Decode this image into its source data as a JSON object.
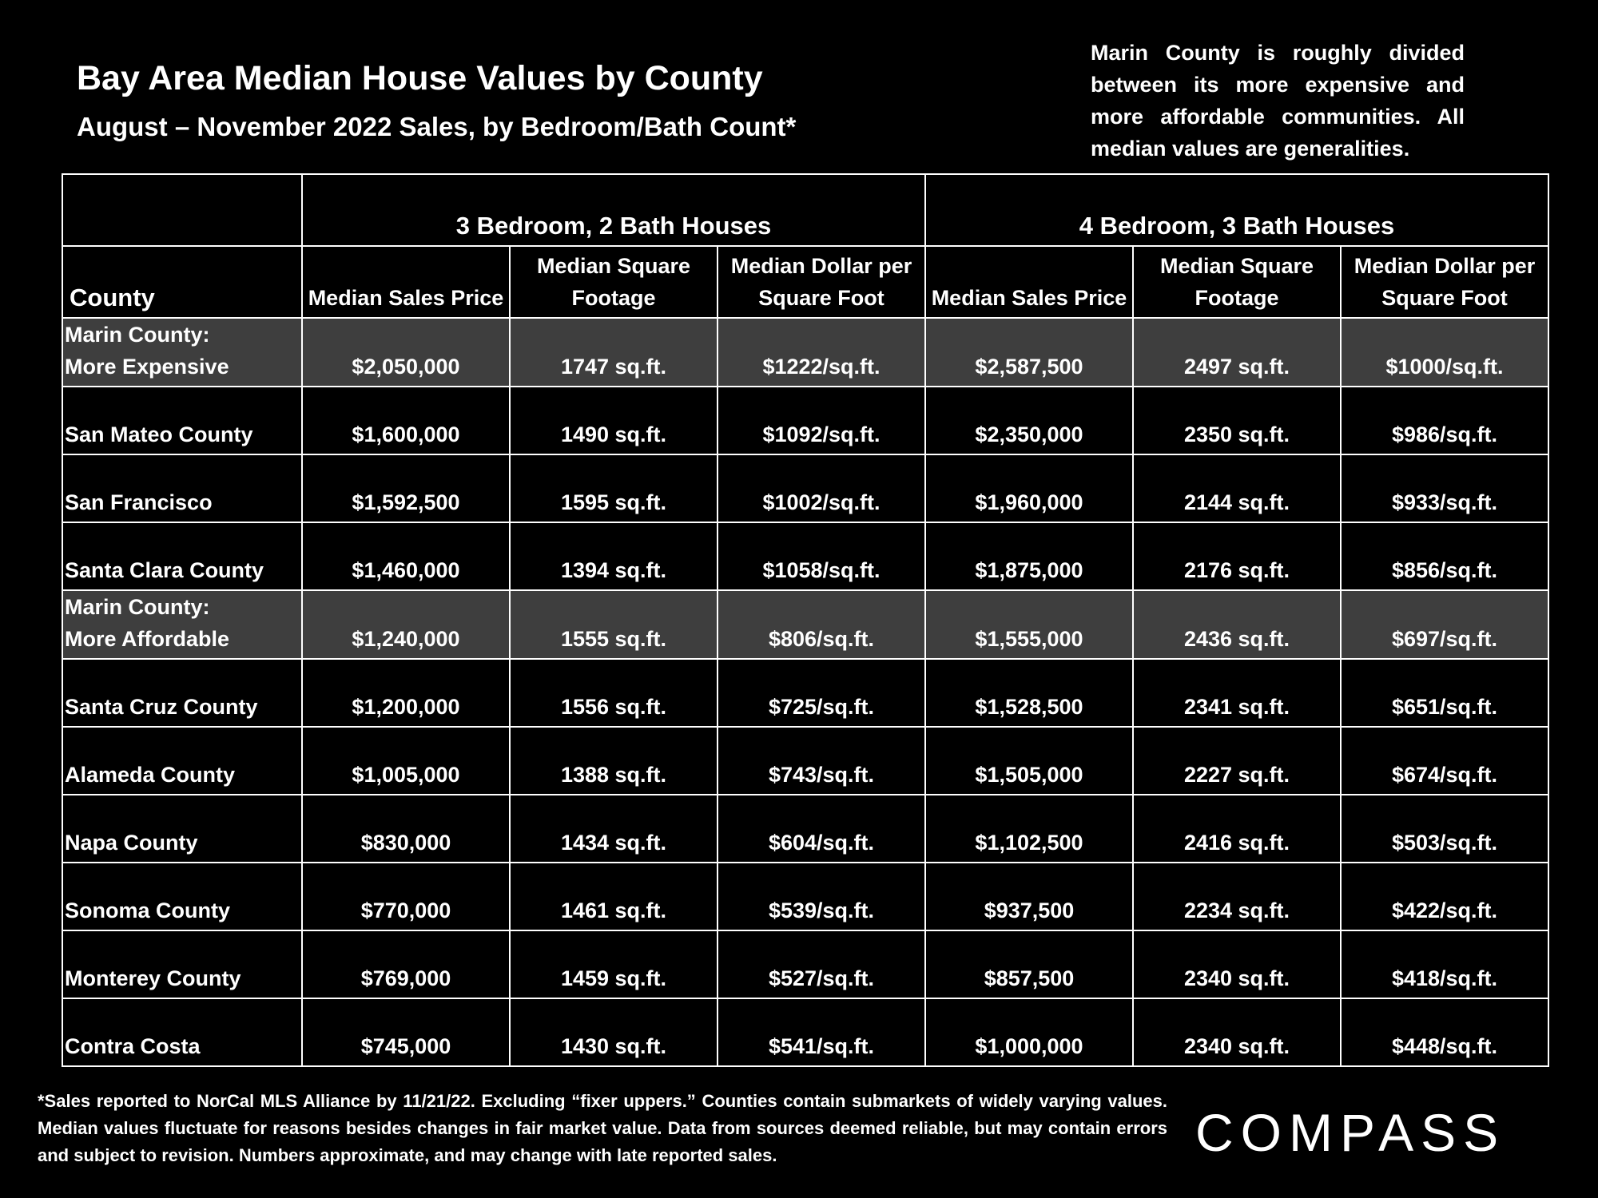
{
  "header": {
    "title": "Bay Area Median House Values by County",
    "subtitle": "August – November 2022 Sales, by Bedroom/Bath Count*",
    "note": "Marin County is roughly divided between its more expensive and more affordable communities. All median values are generalities."
  },
  "table": {
    "group_headers": [
      "3 Bedroom, 2 Bath Houses",
      "4 Bedroom, 3 Bath Houses"
    ],
    "columns": [
      "County",
      "Median Sales Price",
      "Median Square Footage",
      "Median Dollar per Square Foot",
      "Median Sales Price",
      "Median Square Footage",
      "Median Dollar per Square Foot"
    ],
    "rows": [
      [
        "Marin County:\nMore Expensive",
        "$2,050,000",
        "1747 sq.ft.",
        "$1222/sq.ft.",
        "$2,587,500",
        "2497 sq.ft.",
        "$1000/sq.ft."
      ],
      [
        "San Mateo County",
        "$1,600,000",
        "1490 sq.ft.",
        "$1092/sq.ft.",
        "$2,350,000",
        "2350 sq.ft.",
        "$986/sq.ft."
      ],
      [
        "San Francisco",
        "$1,592,500",
        "1595 sq.ft.",
        "$1002/sq.ft.",
        "$1,960,000",
        "2144 sq.ft.",
        "$933/sq.ft."
      ],
      [
        "Santa Clara County",
        "$1,460,000",
        "1394 sq.ft.",
        "$1058/sq.ft.",
        "$1,875,000",
        "2176 sq.ft.",
        "$856/sq.ft."
      ],
      [
        "Marin County:\nMore Affordable",
        "$1,240,000",
        "1555 sq.ft.",
        "$806/sq.ft.",
        "$1,555,000",
        "2436 sq.ft.",
        "$697/sq.ft."
      ],
      [
        "Santa Cruz County",
        "$1,200,000",
        "1556 sq.ft.",
        "$725/sq.ft.",
        "$1,528,500",
        "2341 sq.ft.",
        "$651/sq.ft."
      ],
      [
        "Alameda County",
        "$1,005,000",
        "1388 sq.ft.",
        "$743/sq.ft.",
        "$1,505,000",
        "2227 sq.ft.",
        "$674/sq.ft."
      ],
      [
        "Napa County",
        "$830,000",
        "1434 sq.ft.",
        "$604/sq.ft.",
        "$1,102,500",
        "2416 sq.ft.",
        "$503/sq.ft."
      ],
      [
        "Sonoma County",
        "$770,000",
        "1461 sq.ft.",
        "$539/sq.ft.",
        "$937,500",
        "2234 sq.ft.",
        "$422/sq.ft."
      ],
      [
        "Monterey County",
        "$769,000",
        "1459 sq.ft.",
        "$527/sq.ft.",
        "$857,500",
        "2340 sq.ft.",
        "$418/sq.ft."
      ],
      [
        "Contra Costa",
        "$745,000",
        "1430 sq.ft.",
        "$541/sq.ft.",
        "$1,000,000",
        "2340 sq.ft.",
        "$448/sq.ft."
      ]
    ]
  },
  "footnote": "*Sales reported to NorCal MLS Alliance by 11/21/22. Excluding “fixer uppers.” Counties contain submarkets of widely varying values. Median values fluctuate for reasons besides changes in fair market value. Data from sources deemed reliable, but may contain errors and subject to revision.  Numbers approximate, and may change with late reported sales.",
  "logo": "COMPASS"
}
